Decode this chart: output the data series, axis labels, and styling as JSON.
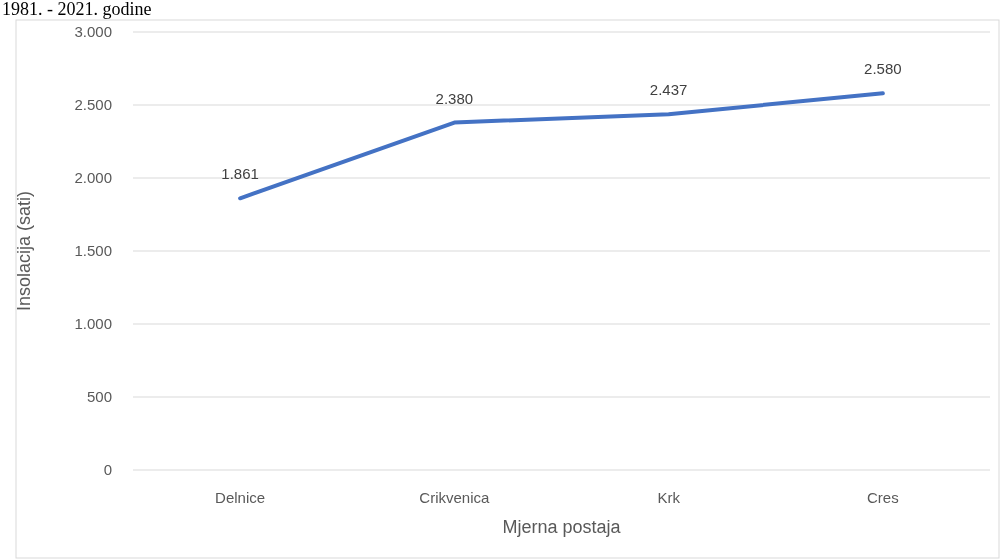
{
  "chart_data": {
    "type": "line",
    "title": "1981. - 2021. godine",
    "xlabel": "Mjerna postaja",
    "ylabel": "Insolacija (sati)",
    "categories": [
      "Delnice",
      "Crikvenica",
      "Krk",
      "Cres"
    ],
    "series": [
      {
        "color": "#4472c4",
        "values": [
          1861,
          2380,
          2437,
          2580
        ],
        "value_labels": [
          "1.861",
          "2.380",
          "2.437",
          "2.580"
        ]
      }
    ],
    "ylim": [
      0,
      3000
    ],
    "yticks": [
      {
        "value": 0,
        "label": "0"
      },
      {
        "value": 500,
        "label": "500"
      },
      {
        "value": 1000,
        "label": "1.000"
      },
      {
        "value": 1500,
        "label": "1.500"
      },
      {
        "value": 2000,
        "label": "2.000"
      },
      {
        "value": 2500,
        "label": "2.500"
      },
      {
        "value": 3000,
        "label": "3.000"
      }
    ],
    "grid": "y",
    "marker": "none",
    "line_style": "solid"
  }
}
